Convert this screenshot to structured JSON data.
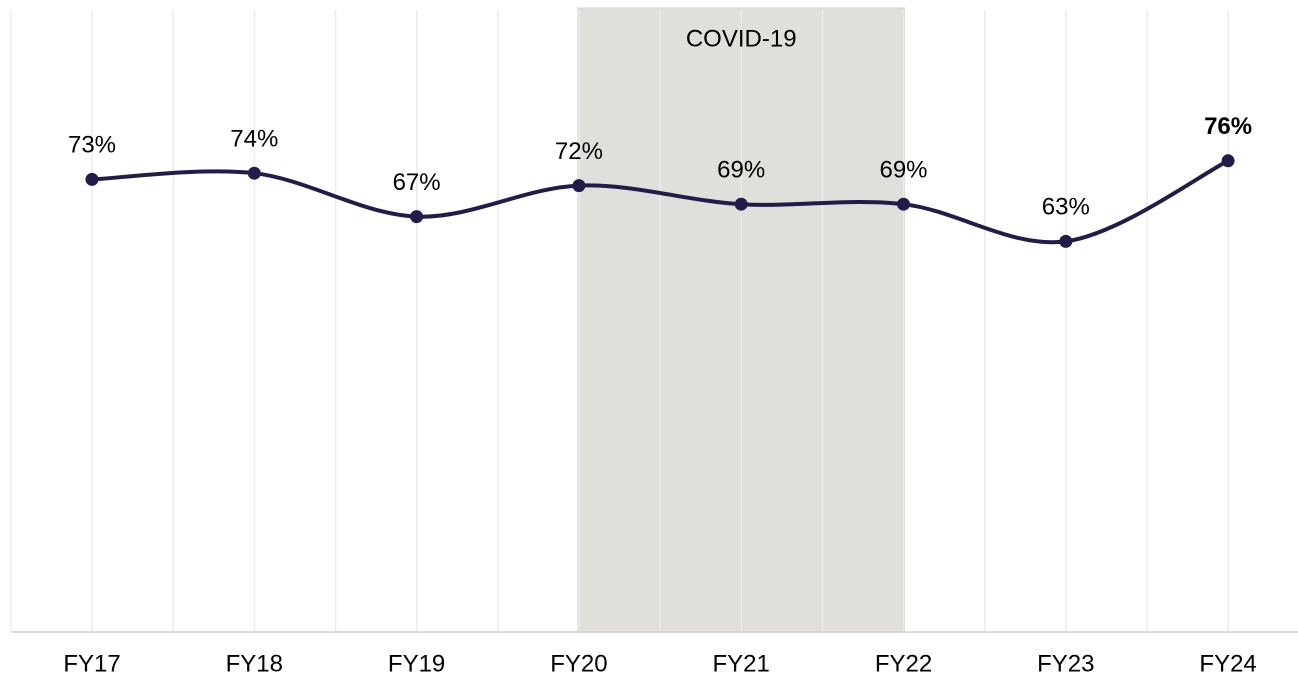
{
  "chart_data": {
    "type": "line",
    "categories": [
      "FY17",
      "FY18",
      "FY19",
      "FY20",
      "FY21",
      "FY22",
      "FY23",
      "FY24"
    ],
    "values": [
      73,
      74,
      67,
      72,
      69,
      69,
      63,
      76
    ],
    "value_labels": [
      "73%",
      "74%",
      "67%",
      "72%",
      "69%",
      "69%",
      "63%",
      "76%"
    ],
    "color": "#241c48",
    "ylim": [
      0,
      100
    ],
    "grid": true,
    "highlight_index": 7,
    "annotation": {
      "text": "COVID-19",
      "start": 3,
      "end": 5,
      "color": "#e0dfdb"
    }
  }
}
